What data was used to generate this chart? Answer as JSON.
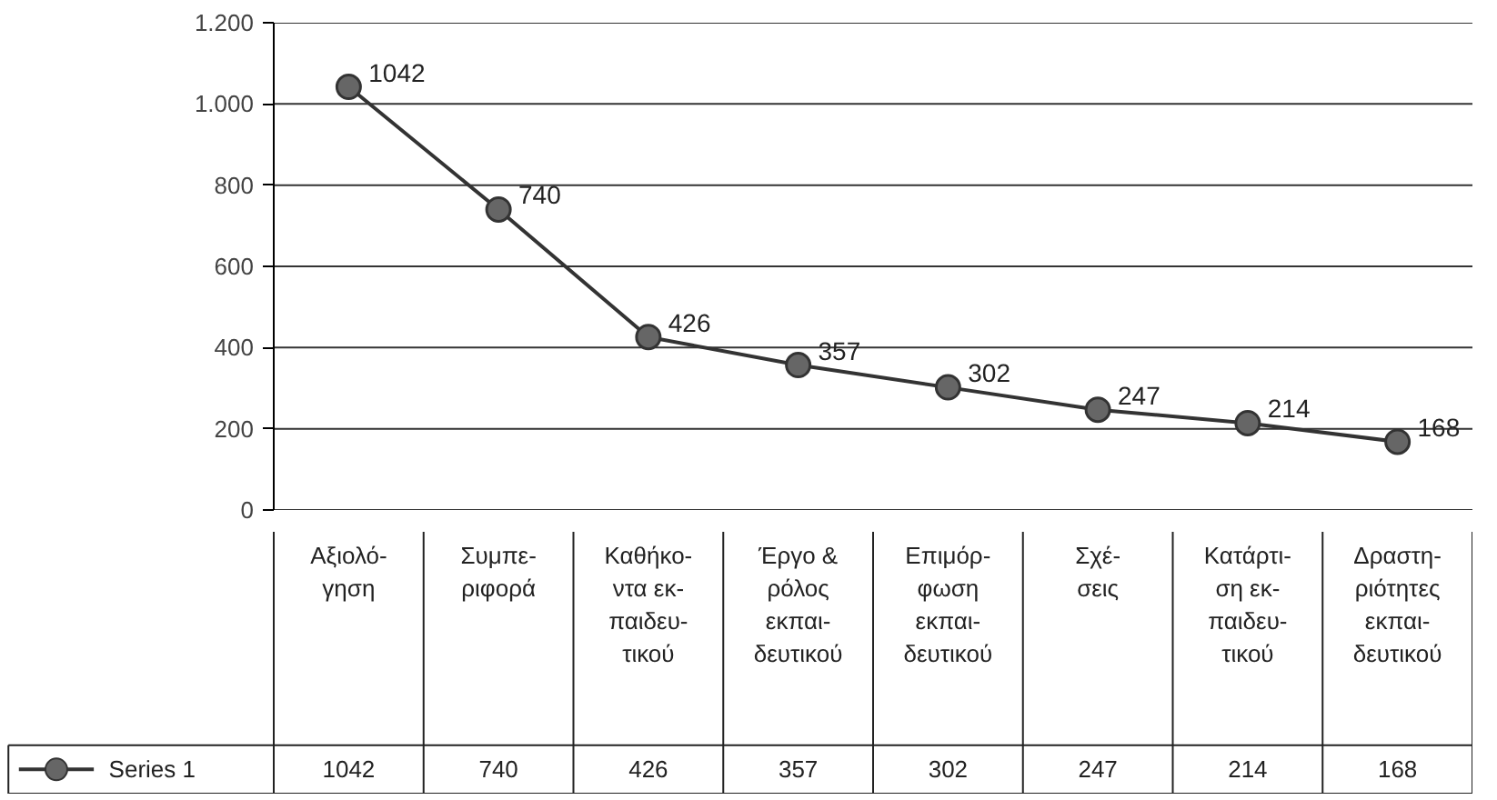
{
  "chart_data": {
    "type": "line",
    "categories": [
      "Αξιολό-\nγηση",
      "Συμπε-\nριφορά",
      "Καθήκο-\nντα εκ-\nπαιδευ-\nτικού",
      "Έργο &\nρόλος\nεκπαι-\nδευτικού",
      "Επιμόρ-\nφωση\nεκπαι-\nδευτικού",
      "Σχέ-\nσεις",
      "Κατάρτι-\nση εκ-\nπαιδευ-\nτικού",
      "Δραστη-\nριότητες\nεκπαι-\nδευτικού"
    ],
    "series": [
      {
        "name": "Series 1",
        "color": "#333333",
        "values": [
          1042,
          740,
          426,
          357,
          302,
          247,
          214,
          168
        ],
        "value_labels": [
          "1042",
          "740",
          "426",
          "357",
          "302",
          "247",
          "214",
          "168"
        ]
      }
    ],
    "ylim": [
      0,
      1200
    ],
    "yticks": [
      0,
      200,
      400,
      600,
      800,
      {
        "value": 1000,
        "label": "1.000"
      },
      {
        "value": 1200,
        "label": "1.200"
      }
    ],
    "grid": "y",
    "marker": "circle",
    "line_style": "solid",
    "data_labels": true,
    "legend": "bottom"
  }
}
